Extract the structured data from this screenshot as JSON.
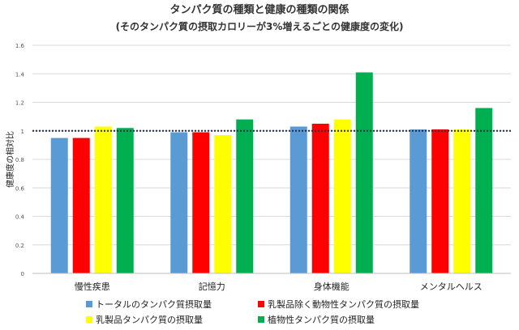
{
  "chart_data": {
    "type": "bar",
    "title": "タンパク質の種類と健康の種類の関係",
    "subtitle": "(そのタンパク質の摂取カロリーが3%増えるごとの健康度の変化)",
    "xlabel": "",
    "ylabel": "健康度の相対比",
    "ylim": [
      0,
      1.6
    ],
    "yticks": [
      "0",
      "0.2",
      "0.4",
      "0.6",
      "0.8",
      "1",
      "1.2",
      "1.4",
      "1.6"
    ],
    "ytick_values": [
      0,
      0.2,
      0.4,
      0.6,
      0.8,
      1.0,
      1.2,
      1.4,
      1.6
    ],
    "reference_line": 1.0,
    "grid": true,
    "legend_position": "bottom",
    "categories": [
      "慢性疾患",
      "記憶力",
      "身体機能",
      "メンタルヘルス"
    ],
    "series": [
      {
        "name": "トータルのタンパク質摂取量",
        "color": "#5b9bd5",
        "values": [
          0.95,
          0.99,
          1.03,
          1.01
        ]
      },
      {
        "name": "乳製品除く動物性タンパク質の摂取量",
        "color": "#ff0000",
        "values": [
          0.95,
          0.99,
          1.05,
          1.01
        ]
      },
      {
        "name": "乳製品タンパク質の摂取量",
        "color": "#ffff00",
        "values": [
          1.03,
          0.97,
          1.08,
          1.01
        ]
      },
      {
        "name": "植物性タンパク質の摂取量",
        "color": "#00b050",
        "values": [
          1.02,
          1.08,
          1.41,
          1.16
        ]
      }
    ]
  }
}
